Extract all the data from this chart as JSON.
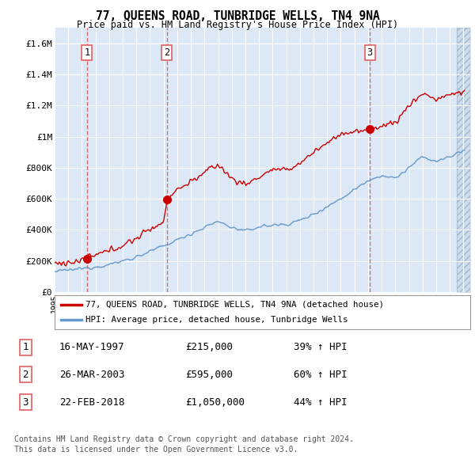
{
  "title": "77, QUEENS ROAD, TUNBRIDGE WELLS, TN4 9NA",
  "subtitle": "Price paid vs. HM Land Registry's House Price Index (HPI)",
  "legend_line1": "77, QUEENS ROAD, TUNBRIDGE WELLS, TN4 9NA (detached house)",
  "legend_line2": "HPI: Average price, detached house, Tunbridge Wells",
  "footer1": "Contains HM Land Registry data © Crown copyright and database right 2024.",
  "footer2": "This data is licensed under the Open Government Licence v3.0.",
  "ylabel_ticks": [
    "£0",
    "£200K",
    "£400K",
    "£600K",
    "£800K",
    "£1M",
    "£1.2M",
    "£1.4M",
    "£1.6M"
  ],
  "ytick_vals": [
    0,
    200000,
    400000,
    600000,
    800000,
    1000000,
    1200000,
    1400000,
    1600000
  ],
  "ylim": [
    0,
    1700000
  ],
  "xlim_start": 1995.0,
  "xlim_end": 2025.5,
  "purchases": [
    {
      "num": 1,
      "date": "16-MAY-1997",
      "price": 215000,
      "year": 1997.37,
      "hpi_pct": "39%",
      "arrow": "↑"
    },
    {
      "num": 2,
      "date": "26-MAR-2003",
      "price": 595000,
      "year": 2003.23,
      "hpi_pct": "60%",
      "arrow": "↑"
    },
    {
      "num": 3,
      "date": "22-FEB-2018",
      "price": 1050000,
      "year": 2018.13,
      "hpi_pct": "44%",
      "arrow": "↑"
    }
  ],
  "red_line_color": "#cc0000",
  "blue_line_color": "#6699cc",
  "bg_color": "#dce8f5",
  "grid_color": "#ffffff",
  "purchase_marker_color": "#cc0000",
  "dashed_line_color": "#e06060",
  "hatch_color": "#c0cfe0"
}
